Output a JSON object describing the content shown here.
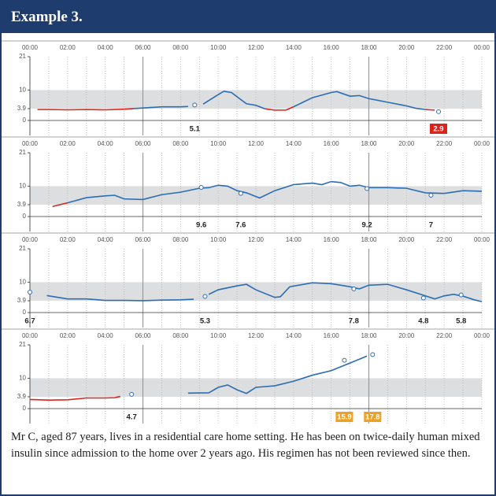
{
  "header": "Example 3.",
  "caption": "Mr C, aged 87 years, lives in a residential care home setting. He has been on twice-daily human mixed insulin since admission to the home over 2 years ago. His regimen has not been reviewed since then.",
  "chart_data": [
    {
      "type": "line",
      "xlim": [
        0,
        24
      ],
      "ylim": [
        0,
        21
      ],
      "yticks": [
        0,
        3.9,
        10,
        21
      ],
      "target_range": [
        3.9,
        10
      ],
      "low_threshold": 3.9,
      "xticks": [
        {
          "value": 0,
          "label": "00:00"
        },
        {
          "value": 2,
          "label": "02:00"
        },
        {
          "value": 4,
          "label": "04:00"
        },
        {
          "value": 6,
          "label": "06:00"
        },
        {
          "value": 8,
          "label": "08:00"
        },
        {
          "value": 10,
          "label": "10:00"
        },
        {
          "value": 12,
          "label": "12:00"
        },
        {
          "value": 14,
          "label": "14:00"
        },
        {
          "value": 16,
          "label": "16:00"
        },
        {
          "value": 18,
          "label": "18:00"
        },
        {
          "value": 20,
          "label": "20:00"
        },
        {
          "value": 22,
          "label": "22:00"
        },
        {
          "value": 24,
          "label": "00:00"
        }
      ],
      "series": [
        {
          "color": "#2a6db5",
          "low_color": "#e0201b",
          "x": [
            0.4,
            1,
            2,
            3,
            4,
            5,
            5.5,
            6,
            7,
            8,
            8.4,
            8.6,
            9.2,
            10,
            10.3,
            10.7,
            11.5,
            12,
            12.5,
            13,
            13.6,
            14,
            15,
            16,
            16.3,
            17,
            17.5,
            18,
            19,
            20,
            20.5,
            21,
            21.5
          ],
          "values": [
            3.6,
            3.6,
            3.5,
            3.6,
            3.5,
            3.7,
            3.9,
            4.1,
            4.5,
            4.5,
            4.6,
            null,
            5.4,
            8.5,
            9.6,
            9.2,
            5.5,
            5.0,
            3.8,
            3.4,
            3.4,
            4.5,
            7.5,
            9.2,
            9.5,
            8.0,
            8.2,
            7.2,
            6.0,
            4.8,
            4.0,
            3.6,
            3.4
          ]
        }
      ],
      "readings": {
        "x": [
          8.75,
          21.7
        ],
        "values": [
          5.1,
          2.9
        ],
        "label_colors": [
          "#222222",
          "#e0201b"
        ]
      }
    },
    {
      "type": "line",
      "xlim": [
        0,
        24
      ],
      "ylim": [
        0,
        21
      ],
      "yticks": [
        0,
        3.9,
        10,
        21
      ],
      "target_range": [
        3.9,
        10
      ],
      "low_threshold": 3.9,
      "xticks": [
        {
          "value": 0,
          "label": "00:00"
        },
        {
          "value": 2,
          "label": "02:00"
        },
        {
          "value": 4,
          "label": "04:00"
        },
        {
          "value": 6,
          "label": "06:00"
        },
        {
          "value": 8,
          "label": "08:00"
        },
        {
          "value": 10,
          "label": "10:00"
        },
        {
          "value": 12,
          "label": "12:00"
        },
        {
          "value": 14,
          "label": "14:00"
        },
        {
          "value": 16,
          "label": "16:00"
        },
        {
          "value": 18,
          "label": "18:00"
        },
        {
          "value": 20,
          "label": "20:00"
        },
        {
          "value": 22,
          "label": "22:00"
        },
        {
          "value": 24,
          "label": "00:00"
        }
      ],
      "series": [
        {
          "color": "#2a6db5",
          "low_color": "#e0201b",
          "x": [
            1.2,
            2,
            3,
            4,
            4.5,
            5,
            6,
            7,
            8,
            9,
            9.5,
            10,
            10.5,
            11,
            11.5,
            12.2,
            13,
            14,
            15,
            15.5,
            16,
            16.5,
            17,
            17.5,
            18,
            19,
            20,
            21,
            22,
            23,
            24
          ],
          "values": [
            3.3,
            4.5,
            6.2,
            6.8,
            7.0,
            5.8,
            5.6,
            7.2,
            8.0,
            9.3,
            9.5,
            10.3,
            10.0,
            8.5,
            7.8,
            6.1,
            8.5,
            10.5,
            11.0,
            10.5,
            11.5,
            11.2,
            10.0,
            10.3,
            9.5,
            9.5,
            9.3,
            7.8,
            7.6,
            8.5,
            8.3
          ]
        }
      ],
      "readings": {
        "x": [
          9.1,
          11.2,
          17.9,
          21.3
        ],
        "values": [
          9.6,
          7.6,
          9.2,
          7.0
        ],
        "label_colors": [
          "#222222",
          "#222222",
          "#222222",
          "#222222"
        ]
      }
    },
    {
      "type": "line",
      "xlim": [
        0,
        24
      ],
      "ylim": [
        0,
        21
      ],
      "yticks": [
        0,
        3.9,
        10,
        21
      ],
      "target_range": [
        3.9,
        10
      ],
      "low_threshold": 3.9,
      "xticks": [
        {
          "value": 0,
          "label": "00:00"
        },
        {
          "value": 2,
          "label": "02:00"
        },
        {
          "value": 4,
          "label": "04:00"
        },
        {
          "value": 6,
          "label": "06:00"
        },
        {
          "value": 8,
          "label": "08:00"
        },
        {
          "value": 10,
          "label": "10:00"
        },
        {
          "value": 12,
          "label": "12:00"
        },
        {
          "value": 14,
          "label": "14:00"
        },
        {
          "value": 16,
          "label": "16:00"
        },
        {
          "value": 18,
          "label": "18:00"
        },
        {
          "value": 20,
          "label": "20:00"
        },
        {
          "value": 22,
          "label": "22:00"
        },
        {
          "value": 24,
          "label": "00:00"
        }
      ],
      "series": [
        {
          "color": "#2a6db5",
          "low_color": "#e0201b",
          "x": [
            0.9,
            2,
            3,
            4,
            5,
            6,
            7,
            8,
            8.7,
            9,
            9.5,
            10,
            11,
            11.5,
            12,
            13,
            13.3,
            13.8,
            15,
            16,
            17,
            17.5,
            18,
            19,
            20,
            21,
            21.5,
            22,
            22.5,
            23,
            23.6,
            24
          ],
          "values": [
            5.6,
            4.5,
            4.5,
            4.0,
            4.0,
            3.9,
            4.1,
            4.2,
            4.4,
            null,
            6.0,
            7.5,
            8.8,
            9.3,
            7.5,
            5.0,
            5.2,
            8.5,
            9.8,
            9.5,
            8.5,
            7.8,
            9.0,
            9.3,
            7.5,
            5.5,
            4.5,
            5.5,
            6.0,
            5.4,
            4.2,
            3.6
          ]
        }
      ],
      "readings": {
        "x": [
          0,
          9.3,
          17.2,
          20.9,
          22.9
        ],
        "values": [
          6.7,
          5.3,
          7.8,
          4.8,
          5.8
        ],
        "label_colors": [
          "#222222",
          "#222222",
          "#222222",
          "#222222",
          "#222222"
        ]
      }
    },
    {
      "type": "line",
      "xlim": [
        0,
        24
      ],
      "ylim": [
        0,
        21
      ],
      "yticks": [
        0,
        3.9,
        10,
        21
      ],
      "target_range": [
        3.9,
        10
      ],
      "low_threshold": 3.9,
      "xticks": [
        {
          "value": 0,
          "label": "00:00"
        },
        {
          "value": 2,
          "label": "02:00"
        },
        {
          "value": 4,
          "label": "04:00"
        },
        {
          "value": 6,
          "label": "06:00"
        },
        {
          "value": 8,
          "label": "08:00"
        },
        {
          "value": 10,
          "label": "10:00"
        },
        {
          "value": 12,
          "label": "12:00"
        },
        {
          "value": 14,
          "label": "14:00"
        },
        {
          "value": 16,
          "label": "16:00"
        },
        {
          "value": 18,
          "label": "18:00"
        },
        {
          "value": 20,
          "label": "20:00"
        },
        {
          "value": 22,
          "label": "22:00"
        },
        {
          "value": 24,
          "label": "00:00"
        }
      ],
      "series": [
        {
          "color": "#2a6db5",
          "low_color": "#e0201b",
          "x": [
            0,
            1,
            2,
            3,
            4,
            4.5,
            4.8,
            5,
            8.4,
            9.5,
            10,
            10.5,
            11,
            11.5,
            12,
            13,
            14,
            15,
            16,
            17,
            17.9
          ],
          "values": [
            3.0,
            2.8,
            2.9,
            3.5,
            3.5,
            3.6,
            4.0,
            null,
            5.1,
            5.2,
            7.0,
            7.8,
            6.2,
            5.0,
            7.0,
            7.5,
            9.0,
            11.0,
            12.5,
            15.0,
            17.3
          ]
        }
      ],
      "readings": {
        "x": [
          5.4,
          16.7,
          18.2
        ],
        "values": [
          4.7,
          15.9,
          17.8
        ],
        "label_colors": [
          "#222222",
          "#f0a020",
          "#f0a020"
        ]
      }
    }
  ]
}
